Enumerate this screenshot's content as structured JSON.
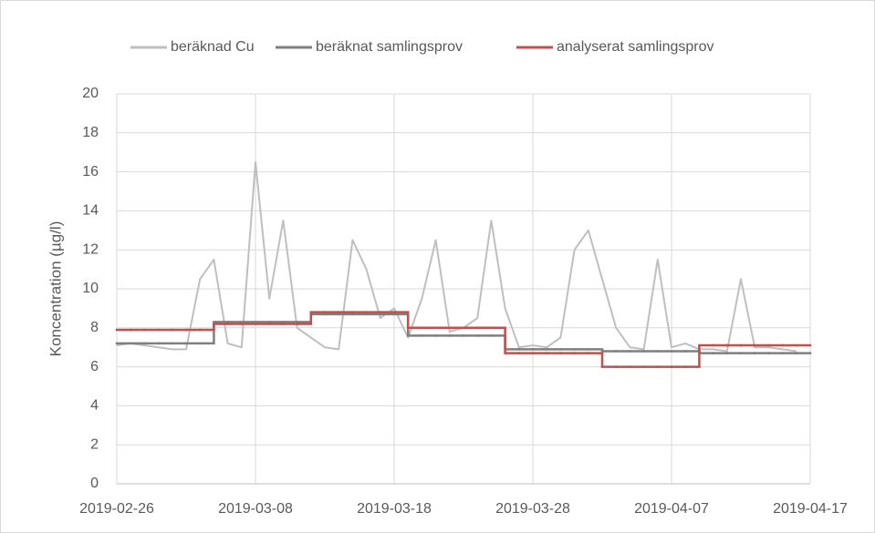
{
  "chart_data": {
    "type": "line",
    "y_label": "Koncentration (µg/l)",
    "x": [
      "2019-02-26",
      "2019-02-27",
      "2019-02-28",
      "2019-03-01",
      "2019-03-02",
      "2019-03-03",
      "2019-03-04",
      "2019-03-05",
      "2019-03-06",
      "2019-03-07",
      "2019-03-08",
      "2019-03-09",
      "2019-03-10",
      "2019-03-11",
      "2019-03-12",
      "2019-03-13",
      "2019-03-14",
      "2019-03-15",
      "2019-03-16",
      "2019-03-17",
      "2019-03-18",
      "2019-03-19",
      "2019-03-20",
      "2019-03-21",
      "2019-03-22",
      "2019-03-23",
      "2019-03-24",
      "2019-03-25",
      "2019-03-26",
      "2019-03-27",
      "2019-03-28",
      "2019-03-29",
      "2019-03-30",
      "2019-03-31",
      "2019-04-01",
      "2019-04-02",
      "2019-04-03",
      "2019-04-04",
      "2019-04-05",
      "2019-04-06",
      "2019-04-07",
      "2019-04-08",
      "2019-04-09",
      "2019-04-10",
      "2019-04-11",
      "2019-04-12",
      "2019-04-13",
      "2019-04-14",
      "2019-04-15",
      "2019-04-16"
    ],
    "series": [
      {
        "name": "beräknad Cu",
        "color": "#bfbfbf",
        "step": false,
        "values": [
          7.1,
          7.2,
          7.1,
          7.0,
          6.9,
          6.9,
          10.5,
          11.5,
          7.2,
          7.0,
          16.5,
          9.5,
          13.5,
          8.0,
          7.5,
          7.0,
          6.9,
          12.5,
          11.0,
          8.5,
          9.0,
          7.5,
          9.5,
          12.5,
          7.8,
          8.0,
          8.5,
          13.5,
          9.0,
          7.0,
          7.1,
          7.0,
          7.5,
          12.0,
          13.0,
          10.5,
          8.0,
          7.0,
          6.9,
          11.5,
          7.0,
          7.2,
          6.9,
          6.9,
          6.8,
          10.5,
          7.0,
          7.0,
          6.9,
          6.8
        ]
      },
      {
        "name": "beräknat samlingsprov",
        "color": "#7f7f7f",
        "step": true,
        "values": [
          7.2,
          7.2,
          7.2,
          7.2,
          7.2,
          7.2,
          7.2,
          8.3,
          8.3,
          8.3,
          8.3,
          8.3,
          8.3,
          8.3,
          8.7,
          8.7,
          8.7,
          8.7,
          8.7,
          8.7,
          8.7,
          7.6,
          7.6,
          7.6,
          7.6,
          7.6,
          7.6,
          7.6,
          6.9,
          6.9,
          6.9,
          6.9,
          6.9,
          6.9,
          6.9,
          6.8,
          6.8,
          6.8,
          6.8,
          6.8,
          6.8,
          6.8,
          6.7,
          6.7,
          6.7,
          6.7,
          6.7,
          6.7,
          6.7,
          6.7
        ]
      },
      {
        "name": "analyserat samlingsprov",
        "color": "#c0504d",
        "step": true,
        "values": [
          7.9,
          7.9,
          7.9,
          7.9,
          7.9,
          7.9,
          7.9,
          8.2,
          8.2,
          8.2,
          8.2,
          8.2,
          8.2,
          8.2,
          8.8,
          8.8,
          8.8,
          8.8,
          8.8,
          8.8,
          8.8,
          8.0,
          8.0,
          8.0,
          8.0,
          8.0,
          8.0,
          8.0,
          6.7,
          6.7,
          6.7,
          6.7,
          6.7,
          6.7,
          6.7,
          6.0,
          6.0,
          6.0,
          6.0,
          6.0,
          6.0,
          6.0,
          7.1,
          7.1,
          7.1,
          7.1,
          7.1,
          7.1,
          7.1,
          7.1
        ]
      }
    ],
    "xlim": [
      "2019-02-26",
      "2019-04-17"
    ],
    "xticks": [
      "2019-02-26",
      "2019-03-08",
      "2019-03-18",
      "2019-03-28",
      "2019-04-07",
      "2019-04-17"
    ],
    "ylim": [
      0,
      20
    ],
    "yticks": [
      0,
      2,
      4,
      6,
      8,
      10,
      12,
      14,
      16,
      18,
      20
    ],
    "grid": true,
    "legend": "top"
  }
}
